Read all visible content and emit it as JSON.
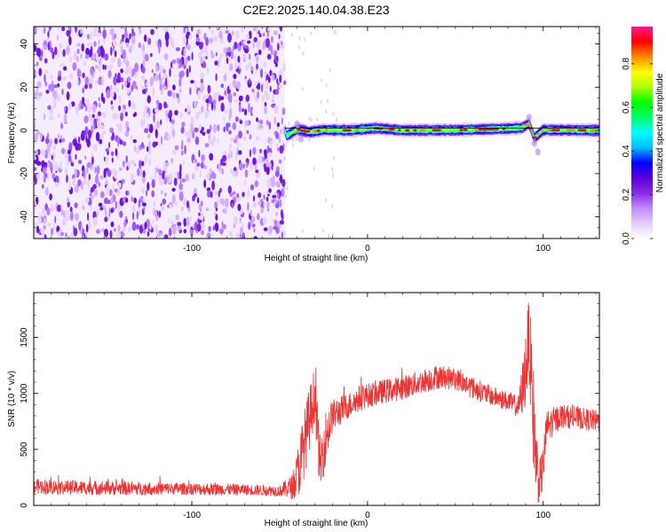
{
  "title": "C2E2.2025.140.04.38.E23",
  "chart_data": [
    {
      "type": "heatmap",
      "xlabel": "Height of straight line (km)",
      "ylabel": "Frequency (Hz)",
      "xlim": [
        -190,
        132
      ],
      "ylim": [
        -50,
        48
      ],
      "xticks": [
        -100,
        0,
        100
      ],
      "yticks": [
        -40,
        -20,
        0,
        20,
        40
      ],
      "grid": false,
      "colorbar": {
        "label": "Normalized spectral amplitude",
        "range": [
          0,
          0.97
        ],
        "ticks": [
          0.0,
          0.2,
          0.4,
          0.6,
          0.8
        ],
        "colormap": [
          "#ffffff",
          "#e4ccff",
          "#c08cff",
          "#8a2be2",
          "#5a00d8",
          "#0000ff",
          "#00bfff",
          "#00ffff",
          "#00ff66",
          "#00ff00",
          "#aaff00",
          "#ffff00",
          "#ff8800",
          "#ff0000",
          "#ff1493"
        ]
      },
      "regions": [
        {
          "name": "noise",
          "x": [
            -190,
            -47
          ],
          "y": [
            -48,
            48
          ],
          "level": 0.05
        },
        {
          "name": "signal band",
          "x": [
            -47,
            132
          ],
          "y": [
            -3,
            3
          ],
          "peak_frequency": 0.3,
          "peak_level": 0.9
        }
      ],
      "signal_frequency_track": [
        {
          "x": -46,
          "y": -2.5
        },
        {
          "x": -40,
          "y": 0.5
        },
        {
          "x": -33,
          "y": -0.8
        },
        {
          "x": -25,
          "y": 0.2
        },
        {
          "x": -10,
          "y": 0.0
        },
        {
          "x": 5,
          "y": 1.0
        },
        {
          "x": 20,
          "y": 0.0
        },
        {
          "x": 50,
          "y": 0.1
        },
        {
          "x": 80,
          "y": 0.8
        },
        {
          "x": 88,
          "y": 1.2
        },
        {
          "x": 92,
          "y": 3.2
        },
        {
          "x": 95,
          "y": -3.5
        },
        {
          "x": 100,
          "y": 0.2
        },
        {
          "x": 132,
          "y": 0.0
        }
      ]
    },
    {
      "type": "line",
      "xlabel": "Height of straight line (km)",
      "ylabel": "SNR (10 * v/v)",
      "xlim": [
        -190,
        132
      ],
      "ylim": [
        0,
        1900
      ],
      "xticks": [
        -100,
        0,
        100
      ],
      "yticks": [
        0,
        500,
        1000,
        1500
      ],
      "grid": false,
      "series": [
        {
          "color": "#ee3333",
          "x": [
            -190,
            -170,
            -150,
            -130,
            -110,
            -90,
            -70,
            -50,
            -42,
            -38,
            -34,
            -30,
            -27,
            -24,
            -20,
            -15,
            -10,
            -5,
            0,
            10,
            20,
            30,
            40,
            50,
            60,
            70,
            80,
            86,
            89,
            92,
            94,
            96,
            98,
            100,
            102,
            110,
            120,
            132
          ],
          "values": [
            170,
            160,
            155,
            150,
            150,
            145,
            140,
            130,
            170,
            400,
            700,
            1000,
            350,
            600,
            800,
            850,
            900,
            950,
            980,
            1020,
            1050,
            1100,
            1150,
            1130,
            1050,
            980,
            930,
            880,
            1100,
            1500,
            900,
            400,
            200,
            350,
            700,
            800,
            780,
            750
          ],
          "noise_amplitude": [
            70,
            65,
            65,
            60,
            55,
            55,
            50,
            50,
            120,
            300,
            300,
            250,
            250,
            250,
            150,
            130,
            120,
            120,
            110,
            110,
            110,
            110,
            110,
            100,
            100,
            90,
            90,
            100,
            300,
            400,
            500,
            350,
            200,
            200,
            150,
            110,
            100,
            100
          ]
        }
      ]
    }
  ]
}
